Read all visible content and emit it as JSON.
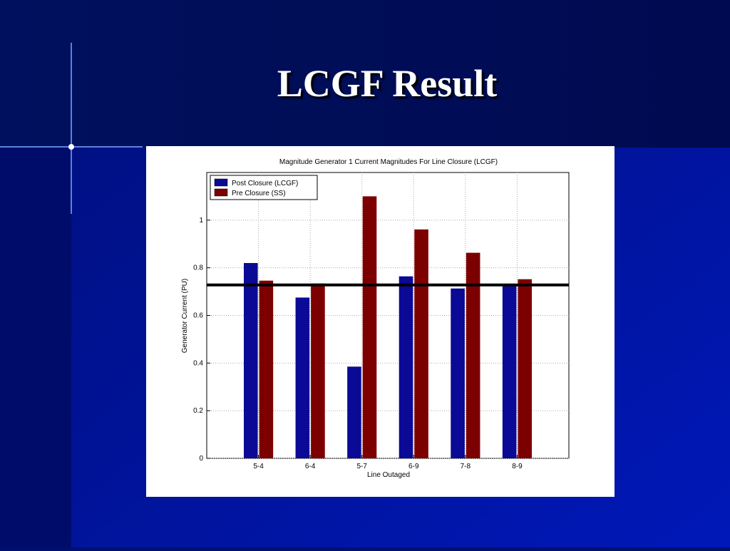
{
  "slide_title": "LCGF Result",
  "chart_data": {
    "type": "bar",
    "title": "Magnitude Generator 1 Current Magnitudes For Line Closure (LCGF)",
    "x_label": "Line Outaged",
    "y_label": "Generator Current (PU)",
    "categories": [
      "5-4",
      "6-4",
      "5-7",
      "6-9",
      "7-8",
      "8-9"
    ],
    "series": [
      {
        "name": "Post Closure (LCGF)",
        "color": "#0a0a96",
        "values": [
          0.82,
          0.675,
          0.385,
          0.764,
          0.713,
          0.728
        ]
      },
      {
        "name": "Pre Closure (SS)",
        "color": "#7d0000",
        "values": [
          0.746,
          0.734,
          1.1,
          0.961,
          0.863,
          0.752
        ]
      }
    ],
    "reference_line": 0.728,
    "ylim": [
      0,
      1.2
    ],
    "yticks": [
      0,
      0.2,
      0.4,
      0.6,
      0.8,
      1
    ],
    "grid": true,
    "legend": "upper-left"
  }
}
